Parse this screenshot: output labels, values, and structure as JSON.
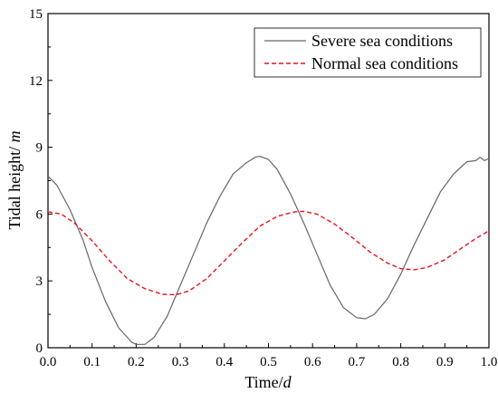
{
  "chart_data": {
    "type": "line",
    "xlabel_main": "Time/",
    "xlabel_unit": "d",
    "ylabel_main": "Tidal height/ ",
    "ylabel_unit": "m",
    "xlim": [
      0,
      1.0
    ],
    "ylim": [
      0,
      15
    ],
    "xticks": [
      "0.0",
      "0.1",
      "0.2",
      "0.3",
      "0.4",
      "0.5",
      "0.6",
      "0.7",
      "0.8",
      "0.9",
      "1.0"
    ],
    "yticks": [
      "0",
      "3",
      "6",
      "9",
      "12",
      "15"
    ],
    "legend_position": "top-right",
    "grid": false,
    "series": [
      {
        "name": "Severe sea conditions",
        "color": "#666666",
        "style": "solid",
        "points": [
          [
            0.0,
            7.7
          ],
          [
            0.02,
            7.3
          ],
          [
            0.05,
            6.2
          ],
          [
            0.08,
            4.8
          ],
          [
            0.1,
            3.6
          ],
          [
            0.13,
            2.1
          ],
          [
            0.16,
            0.9
          ],
          [
            0.19,
            0.25
          ],
          [
            0.2,
            0.15
          ],
          [
            0.22,
            0.15
          ],
          [
            0.24,
            0.45
          ],
          [
            0.27,
            1.4
          ],
          [
            0.3,
            2.8
          ],
          [
            0.33,
            4.2
          ],
          [
            0.36,
            5.6
          ],
          [
            0.39,
            6.8
          ],
          [
            0.42,
            7.8
          ],
          [
            0.45,
            8.3
          ],
          [
            0.47,
            8.55
          ],
          [
            0.48,
            8.6
          ],
          [
            0.5,
            8.45
          ],
          [
            0.52,
            8.0
          ],
          [
            0.55,
            6.9
          ],
          [
            0.58,
            5.6
          ],
          [
            0.61,
            4.2
          ],
          [
            0.64,
            2.8
          ],
          [
            0.67,
            1.8
          ],
          [
            0.7,
            1.35
          ],
          [
            0.72,
            1.3
          ],
          [
            0.74,
            1.5
          ],
          [
            0.77,
            2.2
          ],
          [
            0.8,
            3.3
          ],
          [
            0.83,
            4.6
          ],
          [
            0.86,
            5.8
          ],
          [
            0.89,
            7.0
          ],
          [
            0.92,
            7.8
          ],
          [
            0.95,
            8.35
          ],
          [
            0.97,
            8.4
          ],
          [
            0.98,
            8.55
          ],
          [
            0.99,
            8.4
          ],
          [
            1.0,
            8.5
          ]
        ]
      },
      {
        "name": "Normal sea conditions",
        "color": "#e8141e",
        "style": "dashed",
        "points": [
          [
            0.0,
            6.1
          ],
          [
            0.03,
            6.0
          ],
          [
            0.06,
            5.6
          ],
          [
            0.1,
            4.8
          ],
          [
            0.14,
            3.9
          ],
          [
            0.18,
            3.1
          ],
          [
            0.22,
            2.65
          ],
          [
            0.26,
            2.4
          ],
          [
            0.29,
            2.38
          ],
          [
            0.32,
            2.55
          ],
          [
            0.36,
            3.1
          ],
          [
            0.4,
            3.9
          ],
          [
            0.44,
            4.7
          ],
          [
            0.48,
            5.45
          ],
          [
            0.52,
            5.9
          ],
          [
            0.56,
            6.1
          ],
          [
            0.58,
            6.12
          ],
          [
            0.61,
            6.0
          ],
          [
            0.65,
            5.55
          ],
          [
            0.69,
            4.95
          ],
          [
            0.73,
            4.3
          ],
          [
            0.77,
            3.8
          ],
          [
            0.8,
            3.55
          ],
          [
            0.83,
            3.5
          ],
          [
            0.86,
            3.6
          ],
          [
            0.9,
            3.95
          ],
          [
            0.94,
            4.5
          ],
          [
            0.97,
            4.9
          ],
          [
            1.0,
            5.25
          ]
        ]
      }
    ]
  }
}
